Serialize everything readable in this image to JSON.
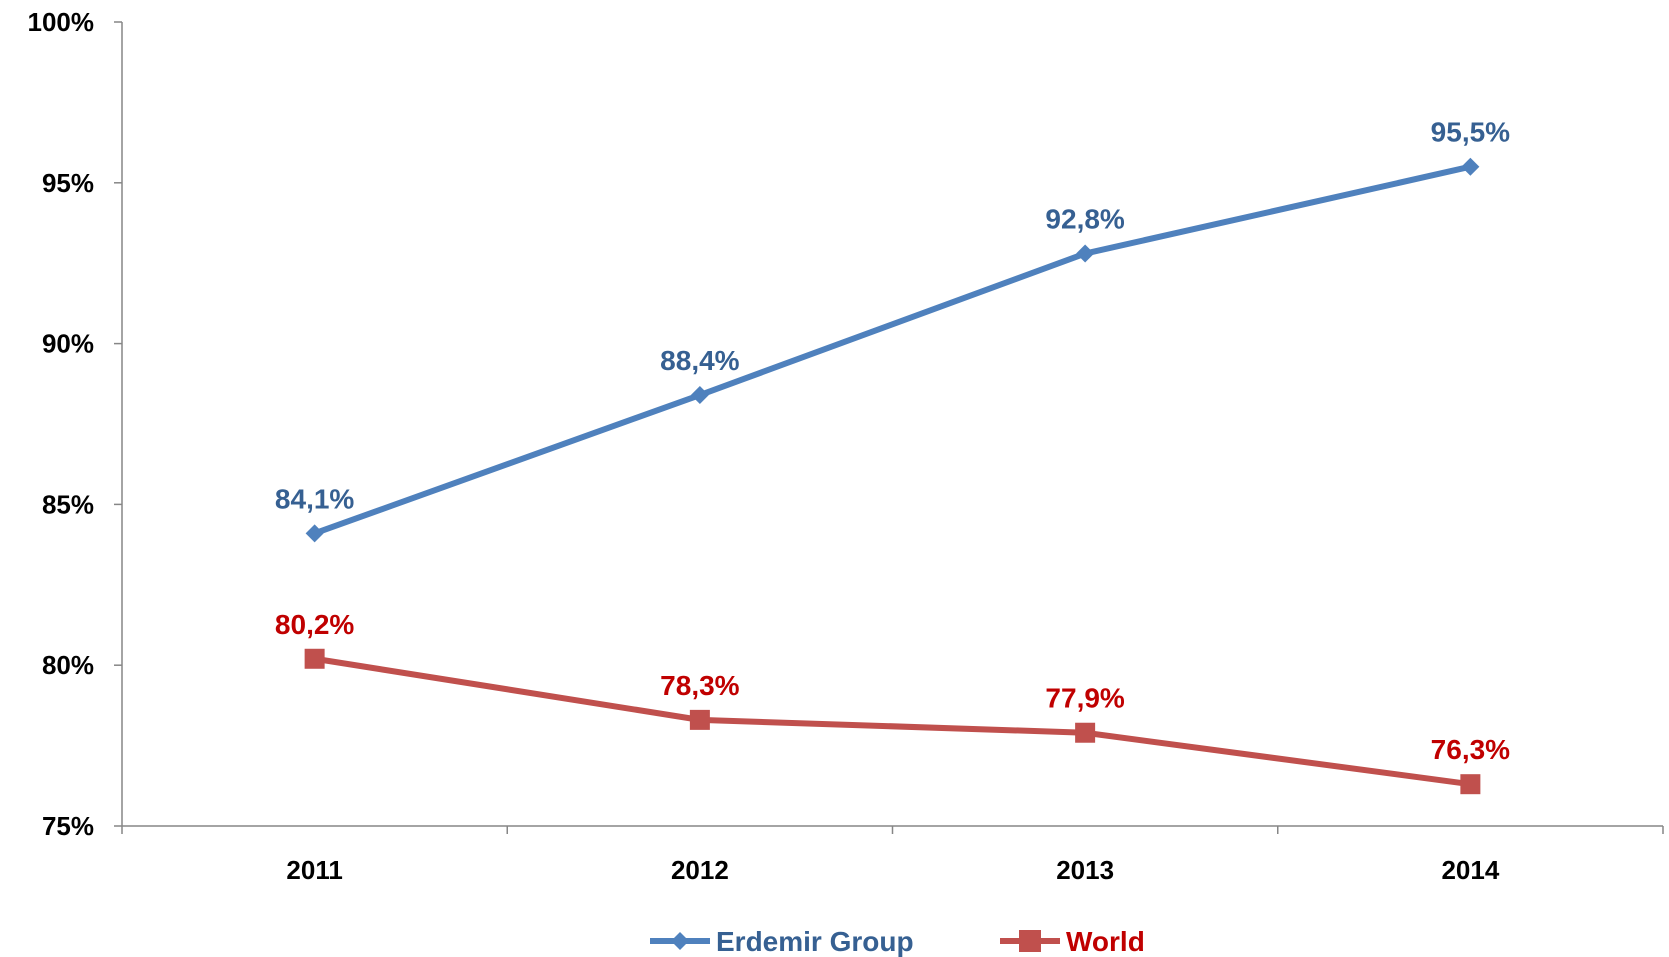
{
  "chart_data": {
    "type": "line",
    "categories": [
      "2011",
      "2012",
      "2013",
      "2014"
    ],
    "series": [
      {
        "name": "Erdemir Group",
        "values": [
          84.1,
          88.4,
          92.8,
          95.5
        ],
        "labels": [
          "84,1%",
          "88,4%",
          "92,8%",
          "95,5%"
        ],
        "color": "#4F81BD",
        "label_color": "#366092",
        "marker": "diamond"
      },
      {
        "name": "World",
        "values": [
          80.2,
          78.3,
          77.9,
          76.3
        ],
        "labels": [
          "80,2%",
          "78,3%",
          "77,9%",
          "76,3%"
        ],
        "color": "#C0504D",
        "label_color": "#C00000",
        "marker": "square"
      }
    ],
    "y_ticks": [
      "75%",
      "80%",
      "85%",
      "90%",
      "95%",
      "100%"
    ],
    "ylim": [
      75,
      100
    ],
    "grid": false,
    "legend_position": "bottom"
  }
}
